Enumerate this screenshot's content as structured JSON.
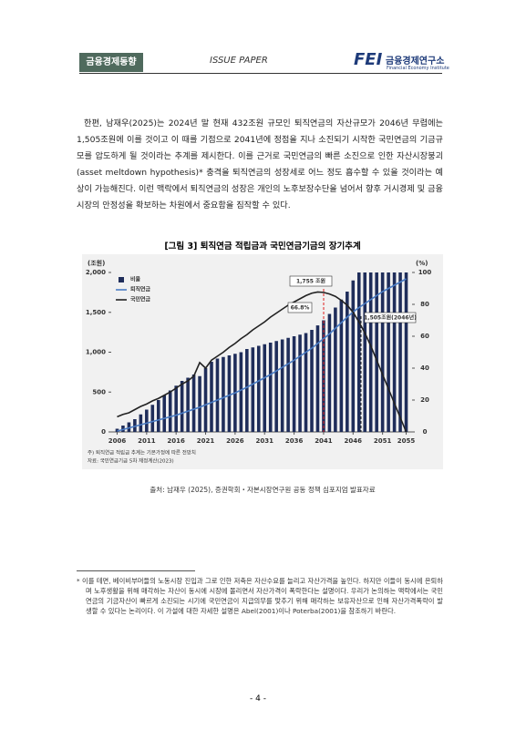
{
  "header": {
    "section": "금융경제동향",
    "title": "ISSUE PAPER",
    "logo": "FEI",
    "institute": "금융경제연구소",
    "institute_en": "Financial Economy Institute"
  },
  "body": [
    "한편, 남재우(2025)는 2024년 말 현재 432조원 규모인 퇴직연금의 자산규모가 2046년 무렵에는 1,505조원에 이를 것이고 이 때를 기점으로 2041년에 정점을 지나 소진되기 시작한 국민연금의 기금규모를 압도하게 될 것이라는 추계를 제시한다. 이를 근거로 국민연금의 빠른 소진으로 인한 자산시장붕괴(asset meltdown hypothesis)* 충격을 퇴직연금의 성장세로 어느 정도 흡수할 수 있을 것이라는 예상이 가능해진다. 이런 맥락에서 퇴직연금의 성장은 개인의 노후보장수단을 넘어서 향후 거시경제 및 금융시장의 안정성을 확보하는 차원에서 중요함을 짐작할 수 있다."
  ],
  "figure": {
    "title": "[그림 3] 퇴직연금 적립금과 국민연금기금의 장기추계",
    "source": "출처: 남재우 (2025), 증권학회・자본시장연구원 공동 정책 심포지엄 발표자료",
    "chart_data": {
      "type": "bar_line",
      "ylabel": "(조원)",
      "y2label": "(%)",
      "x": [
        2006,
        2007,
        2008,
        2009,
        2010,
        2011,
        2012,
        2013,
        2014,
        2015,
        2016,
        2017,
        2018,
        2019,
        2020,
        2021,
        2022,
        2023,
        2024,
        2025,
        2026,
        2027,
        2028,
        2029,
        2030,
        2031,
        2032,
        2033,
        2034,
        2035,
        2036,
        2037,
        2038,
        2039,
        2040,
        2041,
        2042,
        2043,
        2044,
        2045,
        2046,
        2047,
        2048,
        2049,
        2050,
        2051,
        2052,
        2053,
        2054,
        2055
      ],
      "xlim": [
        2005,
        2056
      ],
      "xticks": [
        2006,
        2011,
        2016,
        2021,
        2026,
        2031,
        2036,
        2041,
        2046,
        2051,
        2055
      ],
      "ylim": [
        0,
        2000
      ],
      "yticks": [
        0,
        {
          "value": 500,
          "label": "500"
        },
        {
          "value": 1000,
          "label": "1,000"
        },
        {
          "value": 1500,
          "label": "1,500"
        },
        {
          "value": 2000,
          "label": "2,000"
        }
      ],
      "y2lim": [
        0,
        100
      ],
      "y2ticks": [
        0,
        20,
        40,
        60,
        80,
        100
      ],
      "series": [
        {
          "name": "비율",
          "type": "bar",
          "axis": "y2",
          "color": "#1f2d5a",
          "values": [
            2,
            4,
            6,
            8,
            11,
            14,
            17,
            20,
            23,
            26,
            29,
            32,
            34,
            36,
            35,
            40,
            44,
            46,
            47,
            48,
            49,
            50,
            52,
            53,
            54,
            55,
            56,
            57,
            58,
            59,
            60,
            61,
            62,
            64,
            66.8,
            70,
            74,
            78,
            83,
            88,
            95,
            100,
            100,
            100,
            100,
            100,
            100,
            100,
            100,
            100
          ]
        },
        {
          "name": "퇴직연금",
          "type": "line",
          "color": "#4a7cc4",
          "values": [
            10,
            30,
            50,
            70,
            90,
            110,
            130,
            150,
            170,
            190,
            210,
            235,
            260,
            285,
            310,
            340,
            370,
            400,
            430,
            460,
            490,
            525,
            560,
            600,
            640,
            680,
            720,
            765,
            810,
            855,
            900,
            950,
            1000,
            1050,
            1110,
            1170,
            1230,
            1300,
            1370,
            1440,
            1505,
            1560,
            1610,
            1660,
            1710,
            1760,
            1800,
            1840,
            1880,
            1920
          ]
        },
        {
          "name": "국민연금",
          "type": "line",
          "color": "#222222",
          "values": [
            190,
            220,
            240,
            280,
            320,
            350,
            390,
            420,
            460,
            500,
            550,
            600,
            640,
            700,
            870,
            800,
            900,
            950,
            1000,
            1060,
            1110,
            1170,
            1220,
            1280,
            1330,
            1380,
            1440,
            1490,
            1540,
            1590,
            1630,
            1670,
            1710,
            1740,
            1755,
            1750,
            1730,
            1700,
            1650,
            1590,
            1500,
            1380,
            1240,
            1080,
            900,
            720,
            540,
            360,
            180,
            0
          ]
        }
      ],
      "annotations": [
        "1,755 조원",
        "66.8%",
        "1,505조원(2046년)"
      ],
      "notes": [
        "주) 퇴직연금 적립금 추계는 기본가정에 따른 전망치",
        "자료: 국민연금기금 5차 재정계산(2023)"
      ]
    }
  },
  "footnote": "* 이를 테면, 베이비부머들의 노동시장 진입과 그로 인한 저축은 자산수요를 늘리고 자산가격을 높인다. 하지만 이들이 동시에 은퇴하며 노후생활을 위해 매각하는 자산이 동시에 시장에 몰리면서 자산가격이 폭락한다는 설명이다. 우리가 논의하는 맥락에서는 국민연금의 기금자산이 빠르게 소진되는 시기에 국민연금이 지급의무를 맞추기 위해 매각하는 보유자산으로 인해 자산가격폭락이 발생할 수 있다는 논리이다. 이 가설에 대한 자세한 설명은 Abel(2001)이나 Poterba(2001)을 참조하기 바란다.",
  "page_number": "- 4 -"
}
